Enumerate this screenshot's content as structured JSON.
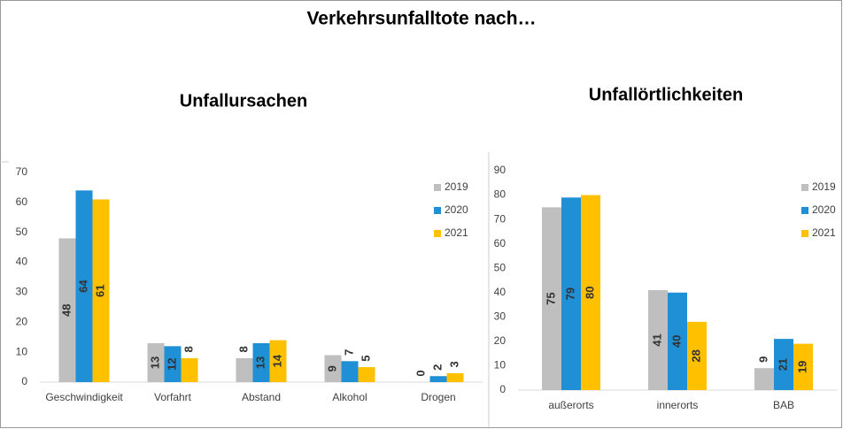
{
  "title": "Verkehrsunfalltote nach…",
  "chart_data": [
    {
      "type": "bar",
      "title": "Unfallursachen",
      "categories": [
        "Geschwindigkeit",
        "Vorfahrt",
        "Abstand",
        "Alkohol",
        "Drogen"
      ],
      "series": [
        {
          "name": "2019",
          "color": "#bfbfbf",
          "values": [
            48,
            13,
            8,
            9,
            0
          ]
        },
        {
          "name": "2020",
          "color": "#1f8fd6",
          "values": [
            64,
            12,
            13,
            7,
            2
          ]
        },
        {
          "name": "2021",
          "color": "#ffc000",
          "values": [
            61,
            8,
            14,
            5,
            3
          ]
        }
      ],
      "ylim": [
        0,
        70
      ],
      "yticks": [
        0,
        10,
        20,
        30,
        40,
        50,
        60,
        70
      ],
      "legend": "upper right"
    },
    {
      "type": "bar",
      "title": "Unfallörtlichkeiten",
      "categories": [
        "außerorts",
        "innerorts",
        "BAB"
      ],
      "series": [
        {
          "name": "2019",
          "color": "#bfbfbf",
          "values": [
            75,
            41,
            9
          ]
        },
        {
          "name": "2020",
          "color": "#1f8fd6",
          "values": [
            79,
            40,
            21
          ]
        },
        {
          "name": "2021",
          "color": "#ffc000",
          "values": [
            80,
            28,
            19
          ]
        }
      ],
      "ylim": [
        0,
        90
      ],
      "yticks": [
        0,
        10,
        20,
        30,
        40,
        50,
        60,
        70,
        80,
        90
      ],
      "legend": "upper right"
    }
  ]
}
